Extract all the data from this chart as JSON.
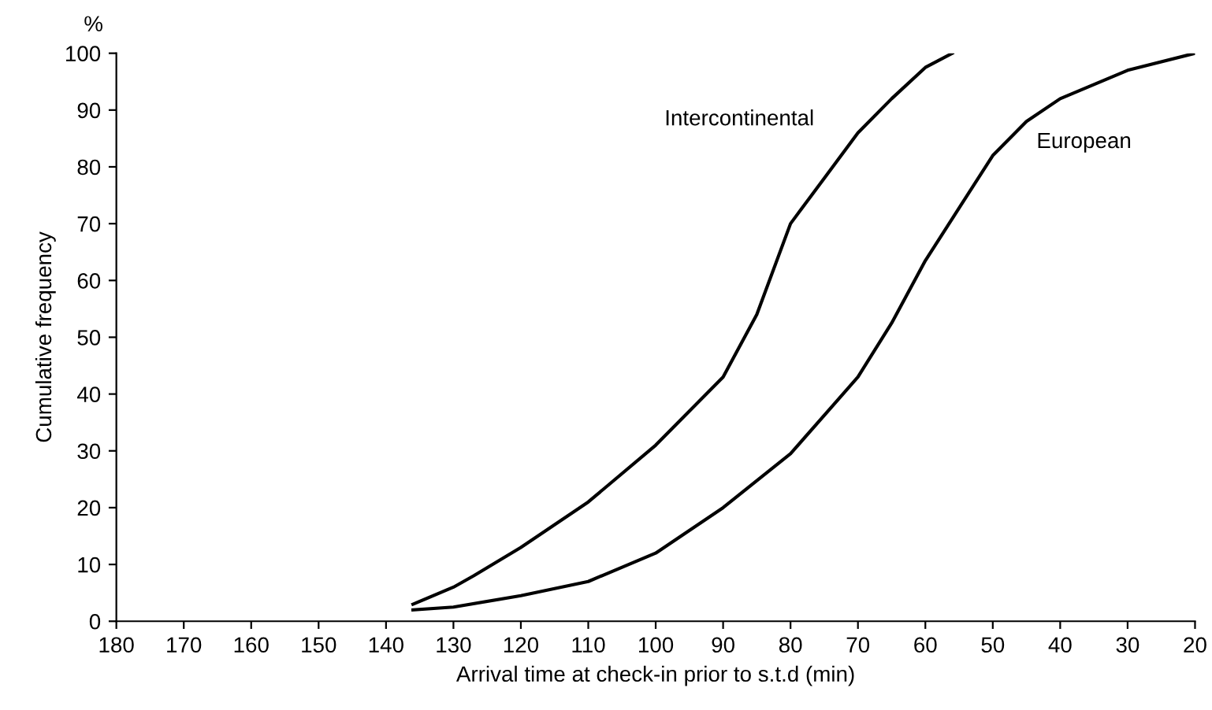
{
  "chart_data": {
    "type": "line",
    "xlabel": "Arrival time at check-in prior to s.t.d (min)",
    "ylabel": "Cumulative frequency",
    "annotations": [
      "%"
    ],
    "xlim": [
      180,
      20
    ],
    "xticks": [
      180,
      170,
      160,
      150,
      140,
      130,
      120,
      110,
      100,
      90,
      80,
      70,
      60,
      50,
      40,
      30,
      20
    ],
    "ylim": [
      0,
      100
    ],
    "yticks": [
      0,
      10,
      20,
      30,
      40,
      50,
      60,
      70,
      80,
      90,
      100
    ],
    "grid": false,
    "marker": "none",
    "line_style": "solid",
    "series": [
      {
        "name": "Intercontinental",
        "color": "#000000",
        "x": [
          136,
          130,
          127,
          120,
          110,
          100,
          90,
          85,
          80,
          75,
          70,
          65,
          60,
          56
        ],
        "values": [
          3,
          6,
          8,
          13,
          21,
          31,
          43,
          54,
          70,
          78,
          86,
          92,
          97.5,
          100
        ]
      },
      {
        "name": "European",
        "color": "#000000",
        "x": [
          136,
          130,
          120,
          110,
          100,
          90,
          80,
          70,
          65,
          60,
          50,
          45,
          40,
          30,
          20
        ],
        "values": [
          2,
          2.5,
          4.5,
          7,
          12,
          20,
          29.5,
          43,
          52.5,
          63.5,
          82,
          88,
          92,
          97,
          100
        ]
      }
    ]
  }
}
